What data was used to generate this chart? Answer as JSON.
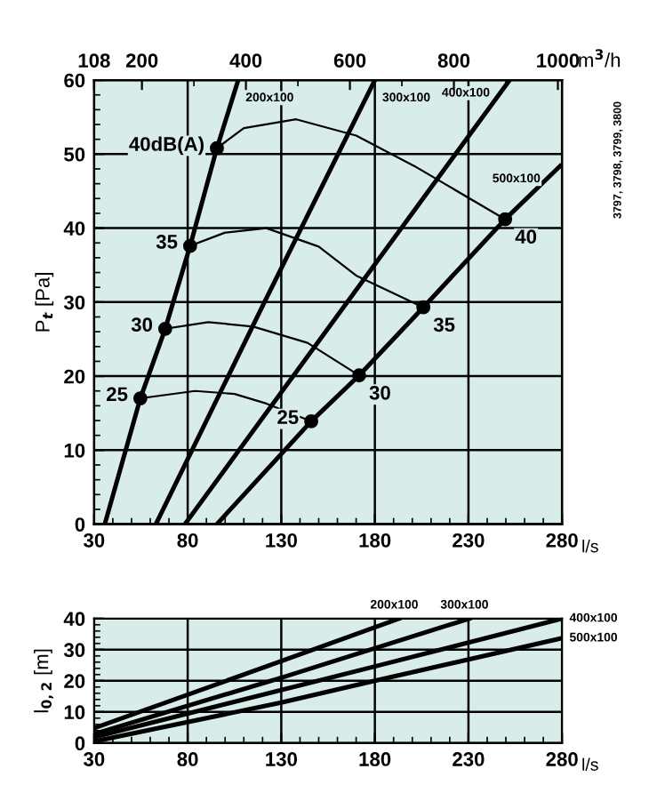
{
  "chart_data": [
    {
      "type": "line",
      "ylabel": "P$_{t}$ [Pa]",
      "xlabel": "l/s",
      "x2label": "m$^{3}$/h",
      "grid": true,
      "xlim": [
        30,
        280
      ],
      "ylim": [
        0,
        60
      ],
      "x2lim": [
        108,
        1008
      ],
      "xticks": [
        30,
        80,
        130,
        180,
        230,
        280,
        {
          "value": 40,
          "label": null
        },
        {
          "value": 50,
          "label": null
        },
        {
          "value": 60,
          "label": null
        },
        {
          "value": 70,
          "label": null
        },
        {
          "value": 90,
          "label": null
        },
        {
          "value": 100,
          "label": null
        },
        {
          "value": 110,
          "label": null
        },
        {
          "value": 120,
          "label": null
        },
        {
          "value": 140,
          "label": null
        },
        {
          "value": 150,
          "label": null
        },
        {
          "value": 160,
          "label": null
        },
        {
          "value": 170,
          "label": null
        },
        {
          "value": 190,
          "label": null
        },
        {
          "value": 200,
          "label": null
        },
        {
          "value": 210,
          "label": null
        },
        {
          "value": 220,
          "label": null
        },
        {
          "value": 240,
          "label": null
        },
        {
          "value": 250,
          "label": null
        },
        {
          "value": 260,
          "label": null
        },
        {
          "value": 270,
          "label": null
        }
      ],
      "yticks": [
        0,
        10,
        20,
        30,
        40,
        50,
        60,
        {
          "value": 2,
          "label": null
        },
        {
          "value": 4,
          "label": null
        },
        {
          "value": 6,
          "label": null
        },
        {
          "value": 8,
          "label": null
        },
        {
          "value": 12,
          "label": null
        },
        {
          "value": 14,
          "label": null
        },
        {
          "value": 16,
          "label": null
        },
        {
          "value": 18,
          "label": null
        },
        {
          "value": 22,
          "label": null
        },
        {
          "value": 24,
          "label": null
        },
        {
          "value": 26,
          "label": null
        },
        {
          "value": 28,
          "label": null
        },
        {
          "value": 32,
          "label": null
        },
        {
          "value": 34,
          "label": null
        },
        {
          "value": 36,
          "label": null
        },
        {
          "value": 38,
          "label": null
        },
        {
          "value": 42,
          "label": null
        },
        {
          "value": 44,
          "label": null
        },
        {
          "value": 46,
          "label": null
        },
        {
          "value": 48,
          "label": null
        },
        {
          "value": 52,
          "label": null
        },
        {
          "value": 54,
          "label": null
        },
        {
          "value": 56,
          "label": null
        },
        {
          "value": 58,
          "label": null
        }
      ],
      "x2ticks": [
        108,
        200,
        400,
        600,
        800,
        1000,
        {
          "value": 300,
          "label": null
        },
        {
          "value": 500,
          "label": null
        },
        {
          "value": 700,
          "label": null
        },
        {
          "value": 900,
          "label": null
        }
      ],
      "series": [
        {
          "name": "200x100",
          "color": "#000000",
          "x": [
            35.7,
            54.7,
            68,
            81.3,
            95.6,
            107
          ],
          "values": [
            0,
            17,
            26.4,
            37.6,
            50.8,
            60
          ]
        },
        {
          "name": "300x100",
          "color": "#000000",
          "x": [
            63,
            121,
            180
          ],
          "values": [
            0,
            30,
            60
          ]
        },
        {
          "name": "400x100",
          "color": "#000000",
          "x": [
            78.5,
            252
          ],
          "values": [
            0,
            60
          ]
        },
        {
          "name": "500x100",
          "color": "#000000",
          "x": [
            95.6,
            146,
            171.6,
            205.9,
            249.6,
            279
          ],
          "values": [
            0,
            13.9,
            20.1,
            29.3,
            41.2,
            48.4
          ]
        },
        {
          "color": "#000000",
          "x": [
            95.6,
            110,
            138,
            170,
            201,
            249.6
          ],
          "values": [
            50.8,
            53.5,
            54.7,
            52.5,
            48.4,
            41.2
          ]
        },
        {
          "color": "#000000",
          "x": [
            81.3,
            100,
            122,
            150,
            170,
            205.9
          ],
          "values": [
            37.6,
            39.4,
            40,
            37.5,
            33.6,
            29.3
          ]
        },
        {
          "color": "#000000",
          "x": [
            68,
            91,
            115,
            144,
            171.6
          ],
          "values": [
            26.4,
            27.3,
            26.7,
            24.5,
            20.1
          ]
        },
        {
          "color": "#000000",
          "x": [
            54.7,
            84,
            105,
            122,
            146
          ],
          "values": [
            17,
            18,
            17.6,
            16.3,
            13.9
          ]
        },
        {
          "type": "scatter",
          "color": "#000000",
          "marker": "circle",
          "x": [
            95.6,
            81.3,
            68,
            54.7,
            249.6,
            205.9,
            171.6,
            146
          ],
          "values": [
            50.8,
            37.6,
            26.4,
            17,
            41.2,
            29.3,
            20.1,
            13.9
          ]
        }
      ],
      "annotations": [
        {
          "text": "40dB(A)",
          "x": 95.6,
          "y": 50.8
        },
        {
          "text": "35",
          "x": 81.3,
          "y": 37.6
        },
        {
          "text": "30",
          "x": 68,
          "y": 26.4
        },
        {
          "text": "25",
          "x": 54.7,
          "y": 17
        },
        {
          "text": "40",
          "x": 249.6,
          "y": 41.2
        },
        {
          "text": "35",
          "x": 205.9,
          "y": 29.3
        },
        {
          "text": "30",
          "x": 171.6,
          "y": 20.1
        },
        {
          "text": "25",
          "x": 146,
          "y": 13.9
        },
        "3797, 3798, 3799, 3800"
      ]
    },
    {
      "type": "line",
      "ylabel": "l$_{0,2}$ [m]",
      "xlabel": "l/s",
      "grid": true,
      "xlim": [
        30,
        280
      ],
      "ylim": [
        0,
        40
      ],
      "xticks": [
        30,
        80,
        130,
        180,
        230,
        280,
        {
          "value": 40,
          "label": null
        },
        {
          "value": 50,
          "label": null
        },
        {
          "value": 60,
          "label": null
        },
        {
          "value": 70,
          "label": null
        },
        {
          "value": 90,
          "label": null
        },
        {
          "value": 100,
          "label": null
        },
        {
          "value": 110,
          "label": null
        },
        {
          "value": 120,
          "label": null
        },
        {
          "value": 140,
          "label": null
        },
        {
          "value": 150,
          "label": null
        },
        {
          "value": 160,
          "label": null
        },
        {
          "value": 170,
          "label": null
        },
        {
          "value": 190,
          "label": null
        },
        {
          "value": 200,
          "label": null
        },
        {
          "value": 210,
          "label": null
        },
        {
          "value": 220,
          "label": null
        },
        {
          "value": 240,
          "label": null
        },
        {
          "value": 250,
          "label": null
        },
        {
          "value": 260,
          "label": null
        },
        {
          "value": 270,
          "label": null
        }
      ],
      "yticks": [
        0,
        10,
        20,
        30,
        40,
        {
          "value": 2,
          "label": null
        },
        {
          "value": 4,
          "label": null
        },
        {
          "value": 6,
          "label": null
        },
        {
          "value": 8,
          "label": null
        },
        {
          "value": 12,
          "label": null
        },
        {
          "value": 14,
          "label": null
        },
        {
          "value": 16,
          "label": null
        },
        {
          "value": 18,
          "label": null
        },
        {
          "value": 22,
          "label": null
        },
        {
          "value": 24,
          "label": null
        },
        {
          "value": 26,
          "label": null
        },
        {
          "value": 28,
          "label": null
        },
        {
          "value": 32,
          "label": null
        },
        {
          "value": 34,
          "label": null
        },
        {
          "value": 36,
          "label": null
        },
        {
          "value": 38,
          "label": null
        }
      ],
      "series": [
        {
          "name": "200x100",
          "color": "#000000",
          "x": [
            30,
            130,
            193
          ],
          "values": [
            4.8,
            26.3,
            40
          ]
        },
        {
          "name": "300x100",
          "color": "#000000",
          "x": [
            30,
            130,
            230.5
          ],
          "values": [
            2.9,
            21,
            40
          ]
        },
        {
          "name": "400x100",
          "color": "#000000",
          "x": [
            30,
            180,
            280
          ],
          "values": [
            1.9,
            24.6,
            40
          ]
        },
        {
          "name": "500x100",
          "color": "#000000",
          "x": [
            30,
            130,
            180,
            280
          ],
          "values": [
            0.5,
            13,
            20,
            33.7
          ]
        }
      ]
    }
  ]
}
